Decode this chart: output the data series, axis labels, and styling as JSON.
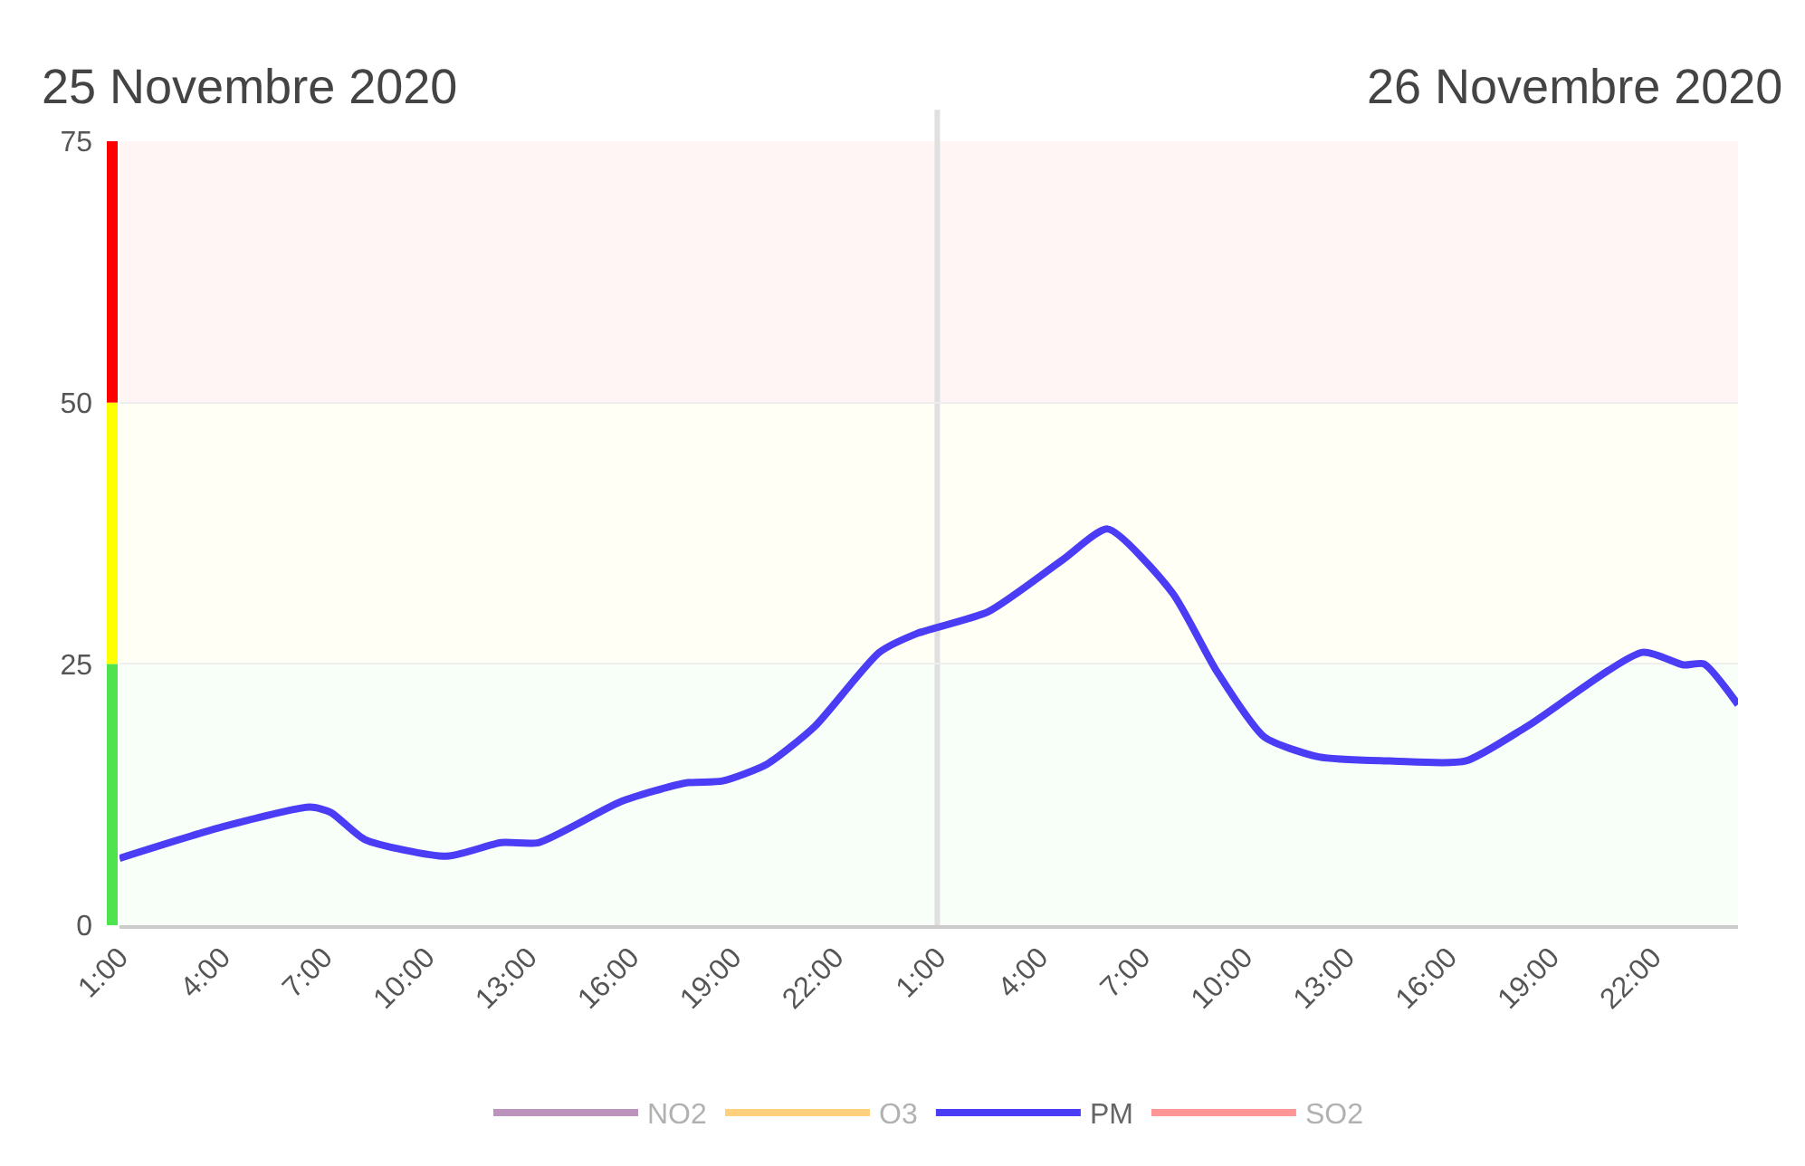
{
  "chart_data": {
    "type": "line",
    "annotations": [
      "25 Novembre 2020",
      "26 Novembre 2020"
    ],
    "x": [
      "2020-11-25T01:00",
      "2020-11-25T03:54",
      "2020-11-25T06:36",
      "2020-11-25T07:12",
      "2020-11-25T08:12",
      "2020-11-25T10:36",
      "2020-11-25T12:12",
      "2020-11-25T13:18",
      "2020-11-25T15:42",
      "2020-11-25T17:36",
      "2020-11-25T18:42",
      "2020-11-25T20:00",
      "2020-11-25T21:24",
      "2020-11-25T23:18",
      "2020-11-26T00:24",
      "2020-11-26T02:30",
      "2020-11-26T04:42",
      "2020-11-26T06:00",
      "2020-11-26T07:54",
      "2020-11-26T09:12",
      "2020-11-26T10:36",
      "2020-11-26T12:12",
      "2020-11-26T14:24",
      "2020-11-26T16:30",
      "2020-11-26T18:18",
      "2020-11-26T21:42",
      "2020-11-26T22:54",
      "2020-11-26T23:30",
      "2020-11-27T00:30"
    ],
    "series": [
      {
        "name": "NO2",
        "color": "#7b2a7b",
        "values": [
          null,
          null,
          null,
          null,
          null,
          null,
          null,
          null,
          null,
          null,
          null,
          null,
          null,
          null,
          null,
          null,
          null,
          null,
          null,
          null,
          null,
          null,
          null,
          null,
          null,
          null,
          null,
          null,
          null
        ]
      },
      {
        "name": "O3",
        "color": "#ffa500",
        "values": [
          null,
          null,
          null,
          null,
          null,
          null,
          null,
          null,
          null,
          null,
          null,
          null,
          null,
          null,
          null,
          null,
          null,
          null,
          null,
          null,
          null,
          null,
          null,
          null,
          null,
          null,
          null,
          null,
          null
        ]
      },
      {
        "name": "PM",
        "color": "#4b3cf5",
        "values": [
          6.4,
          9.3,
          11.3,
          10.8,
          8.2,
          6.6,
          7.9,
          7.9,
          11.8,
          13.6,
          13.8,
          15.4,
          19,
          26.1,
          27.9,
          30,
          35,
          37.9,
          31.8,
          24.3,
          18,
          16.1,
          15.7,
          15.7,
          19,
          26.1,
          24.9,
          25,
          21.1
        ]
      },
      {
        "name": "SO2",
        "color": "#ff3030",
        "values": [
          null,
          null,
          null,
          null,
          null,
          null,
          null,
          null,
          null,
          null,
          null,
          null,
          null,
          null,
          null,
          null,
          null,
          null,
          null,
          null,
          null,
          null,
          null,
          null,
          null,
          null,
          null,
          null,
          null
        ]
      }
    ],
    "xlim": [
      "2020-11-25T01:00",
      "2020-11-27T00:30"
    ],
    "xticks": [
      {
        "value": "2020-11-25T01:00",
        "label": "1:00"
      },
      {
        "value": "2020-11-25T04:00",
        "label": "4:00"
      },
      {
        "value": "2020-11-25T07:00",
        "label": "7:00"
      },
      {
        "value": "2020-11-25T10:00",
        "label": "10:00"
      },
      {
        "value": "2020-11-25T13:00",
        "label": "13:00"
      },
      {
        "value": "2020-11-25T16:00",
        "label": "16:00"
      },
      {
        "value": "2020-11-25T19:00",
        "label": "19:00"
      },
      {
        "value": "2020-11-25T22:00",
        "label": "22:00"
      },
      {
        "value": "2020-11-26T01:00",
        "label": "1:00"
      },
      {
        "value": "2020-11-26T04:00",
        "label": "4:00"
      },
      {
        "value": "2020-11-26T07:00",
        "label": "7:00"
      },
      {
        "value": "2020-11-26T10:00",
        "label": "10:00"
      },
      {
        "value": "2020-11-26T13:00",
        "label": "13:00"
      },
      {
        "value": "2020-11-26T16:00",
        "label": "16:00"
      },
      {
        "value": "2020-11-26T19:00",
        "label": "19:00"
      },
      {
        "value": "2020-11-26T22:00",
        "label": "22:00"
      }
    ],
    "ylim": [
      0,
      75
    ],
    "yticks": [
      0,
      25,
      50,
      75
    ],
    "grid": "y",
    "ref_lines": [
      {
        "axis": "x",
        "value": "2020-11-26T01:00",
        "color": "#e0e0e0"
      }
    ],
    "bands": [
      {
        "axis": "y",
        "from": 0,
        "to": 25,
        "color": "#4ee44e"
      },
      {
        "axis": "y",
        "from": 25,
        "to": 50,
        "color": "#ffff00"
      },
      {
        "axis": "y",
        "from": 50,
        "to": 75,
        "color": "#ff0000"
      }
    ],
    "legend": "bottom",
    "marker": "none",
    "line_style": "solid"
  }
}
